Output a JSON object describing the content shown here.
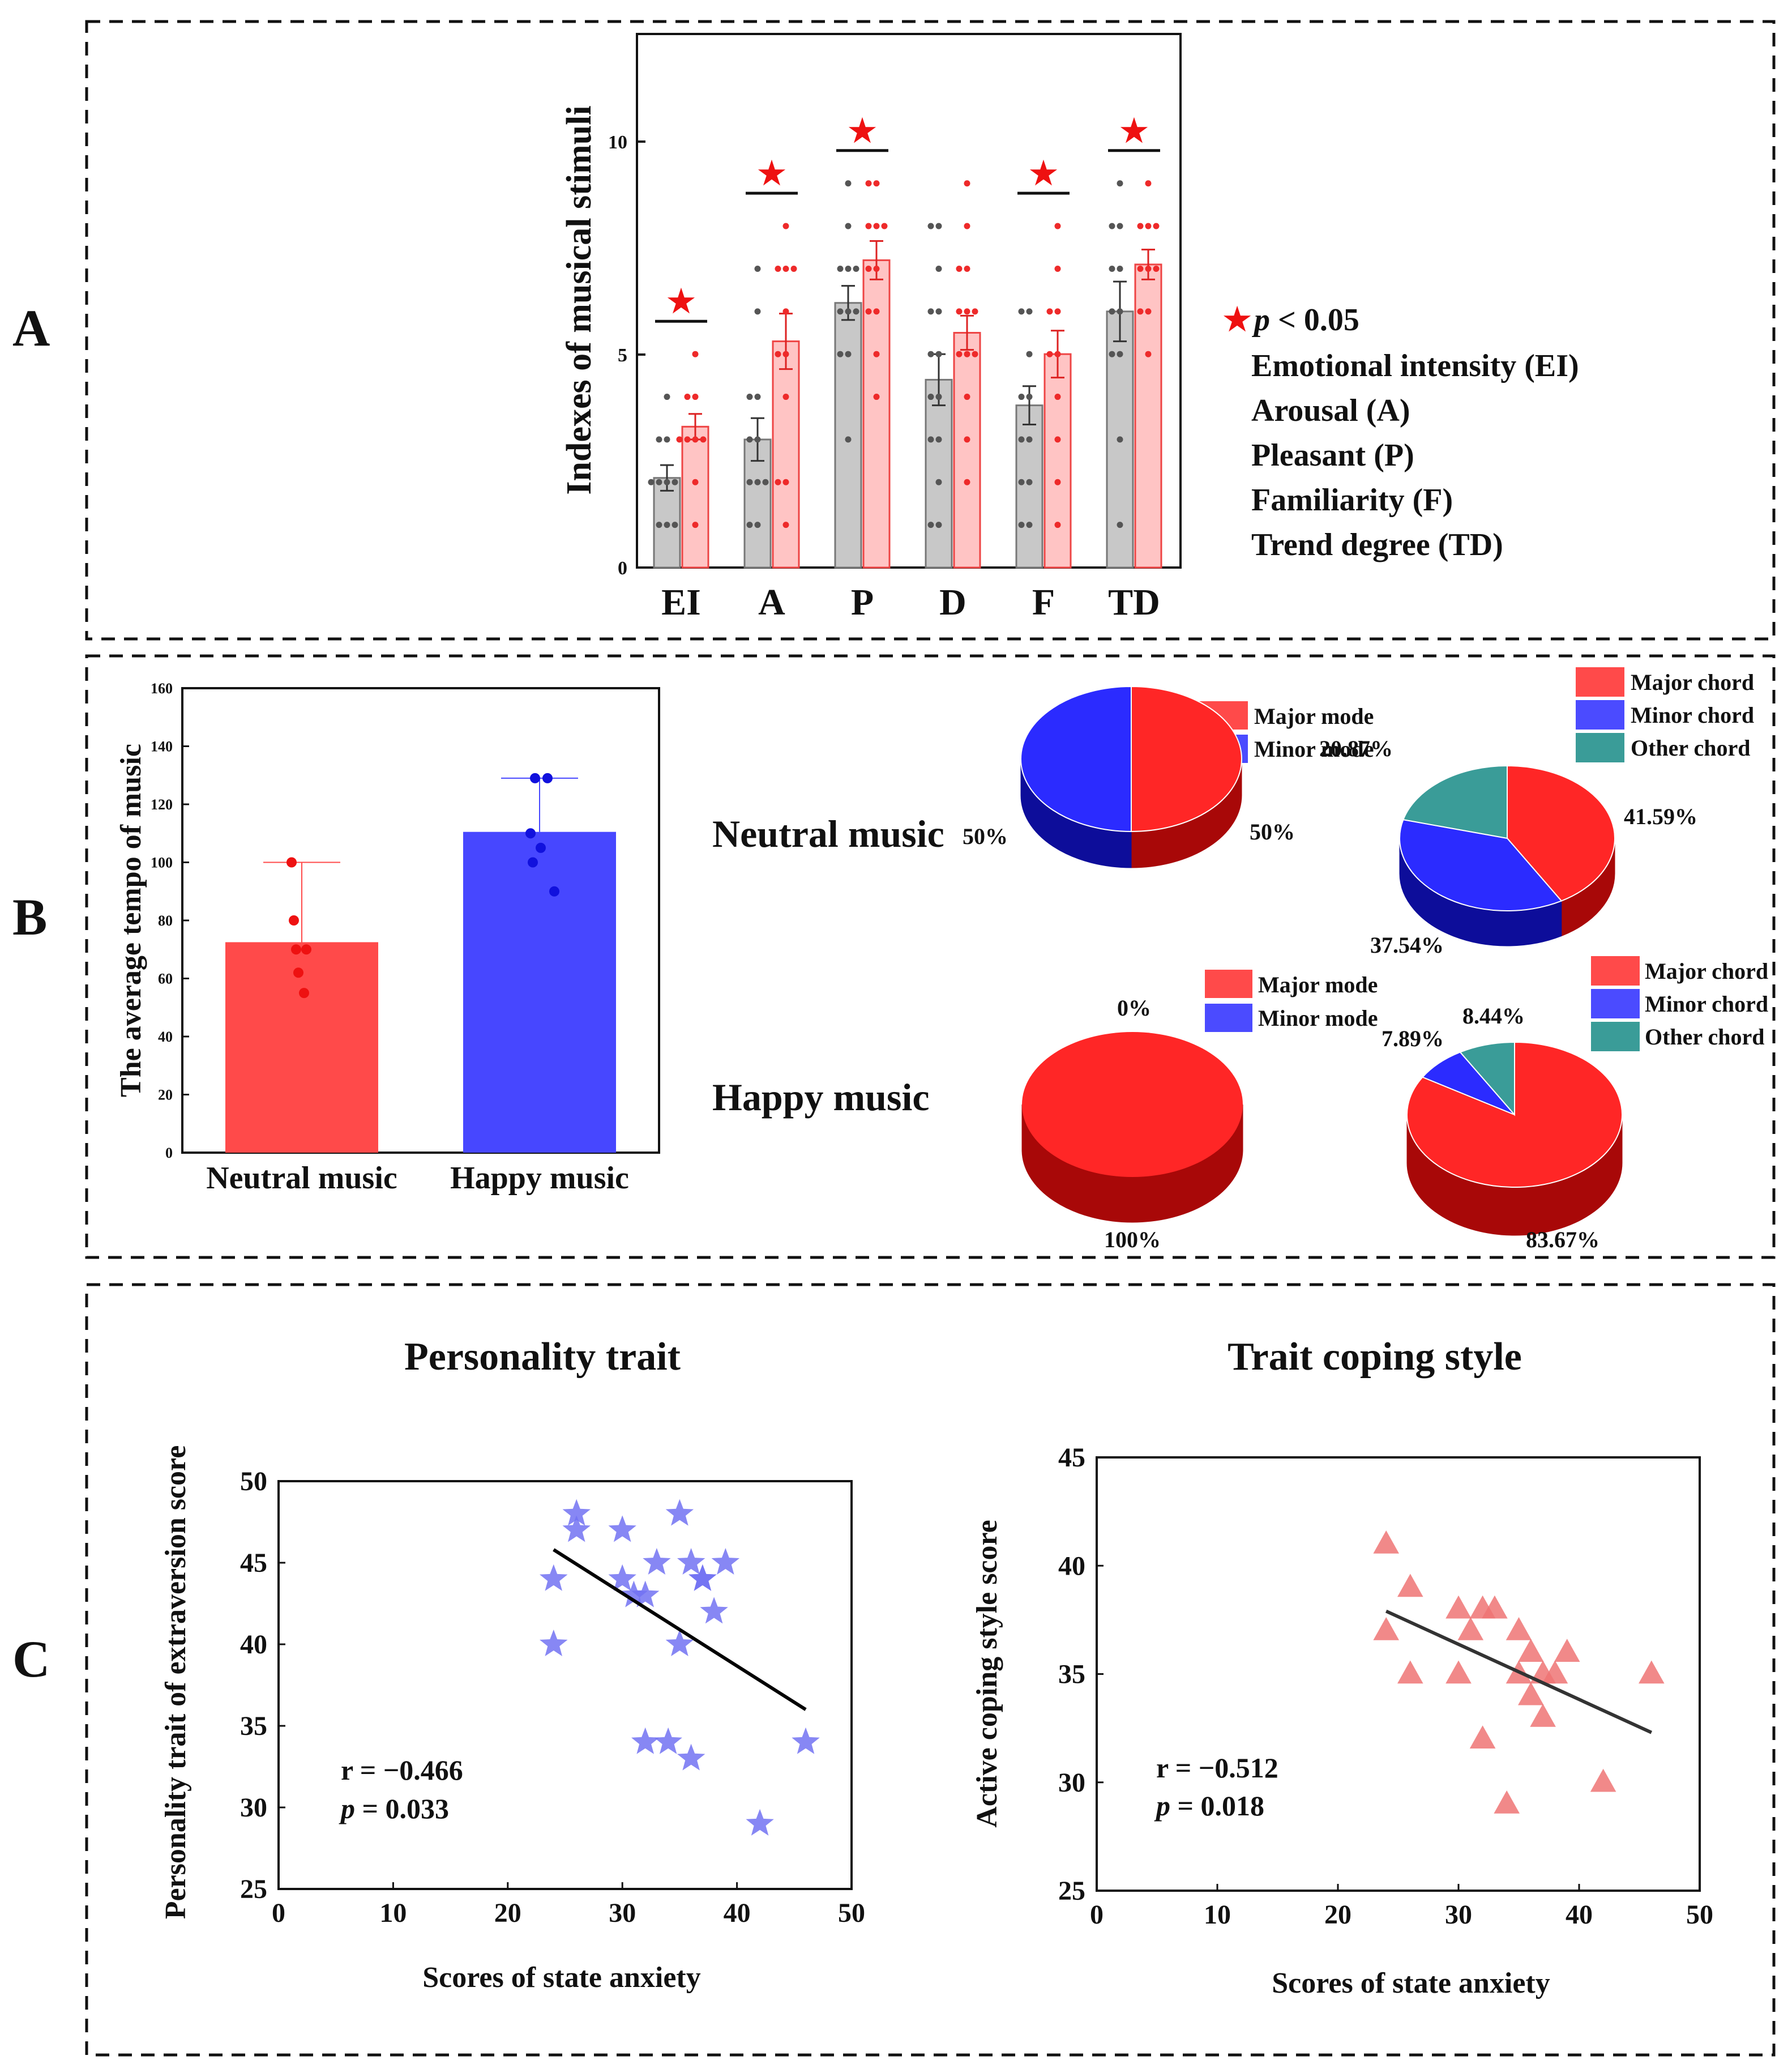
{
  "panel_letters": [
    "A",
    "B",
    "C"
  ],
  "panelA_legend": {
    "sig": "p < 0.05",
    "sig_p": "p",
    "sig_rest": " < 0.05",
    "items": [
      "Emotional intensity (EI)",
      "Arousal (A)",
      "Pleasant (P)",
      "Familiarity (F)",
      "Trend degree (TD)"
    ]
  },
  "panelB": {
    "row_labels": [
      "Neutral music",
      "Happy music"
    ],
    "mode_legend": [
      "Major mode",
      "Minor mode"
    ],
    "chord_legend": [
      "Major chord",
      "Minor chord",
      "Other chord"
    ],
    "pie_labels": {
      "neutral_mode_left": "50%",
      "neutral_mode_right": "50%",
      "neutral_chord_other": "20.87%",
      "neutral_chord_major": "41.59%",
      "neutral_chord_minor": "37.54%",
      "happy_mode_top": "0%",
      "happy_mode_bottom": "100%",
      "happy_chord_minor": "7.89%",
      "happy_chord_other": "8.44%",
      "happy_chord_major": "83.67%"
    }
  },
  "panelC": {
    "titles": [
      "Personality trait",
      "Trait coping style"
    ],
    "stats": [
      {
        "r": "r = −0.466",
        "p_label": "p",
        "p_value": " = 0.033"
      },
      {
        "r": "r = −0.512",
        "p_label": "p",
        "p_value": " = 0.018"
      }
    ]
  },
  "colors": {
    "gray_bar": "#c8c8c8",
    "pink_bar": "#ffc4c4",
    "red_dot": "#ee2a2a",
    "gray_dot": "#555555",
    "tempo_red": "#ff4a4a",
    "tempo_blue": "#4747ff",
    "pie_red": "#ff2626",
    "pie_blue": "#2b2bff",
    "pie_teal": "#3a9c98",
    "star_blue": "#7272f2",
    "tri_red": "#ef7474"
  },
  "chart_data": [
    {
      "id": "A",
      "type": "bar",
      "ylabel": "Indexes of musical stimuli",
      "ylim": [
        0,
        12.5
      ],
      "yticks": [
        0,
        5,
        10
      ],
      "categories": [
        "EI",
        "A",
        "P",
        "D",
        "F",
        "TD"
      ],
      "series": [
        {
          "name": "Neutral music",
          "color": "gray",
          "values": [
            2.1,
            3.0,
            6.2,
            4.4,
            3.8,
            6.0
          ],
          "errors": [
            0.3,
            0.5,
            0.4,
            0.6,
            0.45,
            0.7
          ],
          "points": [
            [
              1,
              1,
              1,
              2,
              2,
              2,
              2,
              3,
              3,
              4
            ],
            [
              1,
              1,
              2,
              2,
              2,
              3,
              3,
              4,
              4,
              6,
              7
            ],
            [
              3,
              5,
              5,
              6,
              6,
              6,
              7,
              7,
              7,
              8,
              9
            ],
            [
              1,
              1,
              2,
              3,
              3,
              4,
              4,
              5,
              5,
              6,
              6,
              7,
              8,
              8
            ],
            [
              1,
              1,
              2,
              2,
              3,
              3,
              4,
              4,
              5,
              6,
              6
            ],
            [
              1,
              3,
              5,
              5,
              6,
              6,
              7,
              7,
              8,
              8,
              9
            ]
          ]
        },
        {
          "name": "Happy music",
          "color": "red",
          "values": [
            3.3,
            5.3,
            7.2,
            5.5,
            5.0,
            7.1
          ],
          "errors": [
            0.3,
            0.65,
            0.45,
            0.4,
            0.55,
            0.35
          ],
          "points": [
            [
              1,
              2,
              3,
              3,
              3,
              3,
              4,
              4,
              5
            ],
            [
              1,
              2,
              2,
              4,
              5,
              5,
              6,
              7,
              7,
              7,
              8
            ],
            [
              4,
              5,
              6,
              6,
              7,
              7,
              8,
              8,
              8,
              9,
              9
            ],
            [
              2,
              3,
              4,
              5,
              5,
              5,
              6,
              6,
              6,
              7,
              7,
              8,
              9
            ],
            [
              1,
              2,
              3,
              4,
              5,
              5,
              6,
              6,
              7,
              8
            ],
            [
              5,
              6,
              6,
              7,
              7,
              7,
              8,
              8,
              8,
              9
            ]
          ]
        }
      ],
      "significance": [
        true,
        true,
        true,
        false,
        true,
        true
      ]
    },
    {
      "id": "B-tempo",
      "type": "bar",
      "ylabel": "The average tempo of music",
      "ylim": [
        0,
        160
      ],
      "yticks": [
        0,
        20,
        40,
        60,
        80,
        100,
        120,
        140,
        160
      ],
      "categories": [
        "Neutral music",
        "Happy music"
      ],
      "values": [
        72.5,
        110.5
      ],
      "error_upper": [
        100,
        129
      ],
      "points": [
        [
          100,
          80,
          70,
          70,
          62,
          55
        ],
        [
          129,
          129,
          110,
          105,
          100,
          90
        ]
      ]
    },
    {
      "id": "B-pies",
      "type": "pie",
      "pies": [
        {
          "name": "Neutral mode",
          "slices": [
            {
              "label": "Major mode",
              "value": 50
            },
            {
              "label": "Minor mode",
              "value": 50
            }
          ]
        },
        {
          "name": "Neutral chord",
          "slices": [
            {
              "label": "Major chord",
              "value": 41.59
            },
            {
              "label": "Minor chord",
              "value": 37.54
            },
            {
              "label": "Other chord",
              "value": 20.87
            }
          ]
        },
        {
          "name": "Happy mode",
          "slices": [
            {
              "label": "Major mode",
              "value": 100
            },
            {
              "label": "Minor mode",
              "value": 0
            }
          ]
        },
        {
          "name": "Happy chord",
          "slices": [
            {
              "label": "Major chord",
              "value": 83.67
            },
            {
              "label": "Minor chord",
              "value": 7.89
            },
            {
              "label": "Other chord",
              "value": 8.44
            }
          ]
        }
      ]
    },
    {
      "id": "C-personality",
      "type": "scatter",
      "title": "Personality trait",
      "xlabel": "Scores of state anxiety",
      "ylabel": "Personality trait of extraversion score",
      "xlim": [
        0,
        50
      ],
      "ylim": [
        25,
        50
      ],
      "xticks": [
        0,
        10,
        20,
        30,
        40,
        50
      ],
      "yticks": [
        25,
        30,
        35,
        40,
        45,
        50
      ],
      "x": [
        24,
        24,
        26,
        26,
        30,
        30,
        31,
        32,
        32,
        33,
        34,
        35,
        35,
        36,
        36,
        37,
        37,
        38,
        39,
        42,
        46
      ],
      "y": [
        44,
        40,
        48,
        47,
        47,
        44,
        43,
        43,
        34,
        45,
        34,
        48,
        40,
        45,
        33,
        44,
        44,
        42,
        45,
        29,
        34
      ],
      "fit": {
        "x": [
          24,
          46
        ],
        "y": [
          45.8,
          36.0
        ]
      }
    },
    {
      "id": "C-coping",
      "type": "scatter",
      "title": "Trait coping style",
      "xlabel": "Scores of state anxiety",
      "ylabel": "Active coping style score",
      "xlim": [
        0,
        50
      ],
      "ylim": [
        25,
        45
      ],
      "xticks": [
        0,
        10,
        20,
        30,
        40,
        50
      ],
      "yticks": [
        25,
        30,
        35,
        40,
        45
      ],
      "x": [
        24,
        24,
        26,
        26,
        30,
        30,
        31,
        32,
        32,
        33,
        34,
        35,
        35,
        36,
        36,
        37,
        37,
        38,
        39,
        42,
        46
      ],
      "y": [
        41,
        37,
        39,
        35,
        38,
        35,
        37,
        38,
        32,
        38,
        29,
        37,
        35,
        36,
        34,
        35,
        33,
        35,
        36,
        30,
        35
      ],
      "fit": {
        "x": [
          24,
          46
        ],
        "y": [
          37.9,
          32.3
        ]
      }
    }
  ]
}
